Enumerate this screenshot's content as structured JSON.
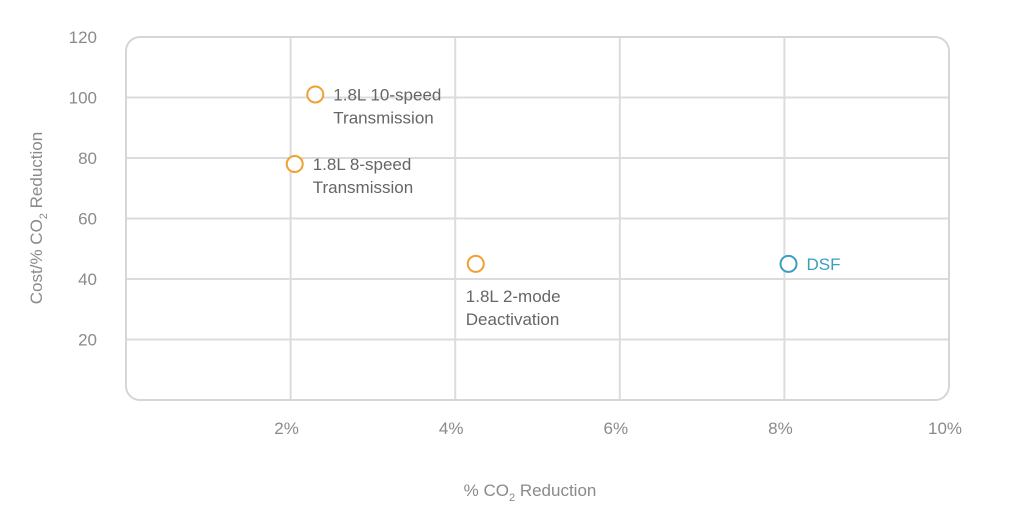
{
  "chart_data": {
    "type": "scatter",
    "xlabel": {
      "prefix": "% CO",
      "sub": "2",
      "suffix": " Reduction"
    },
    "ylabel": {
      "prefix": "Cost/% CO",
      "sub": "2",
      "suffix": " Reduction"
    },
    "xlim": [
      0,
      10
    ],
    "ylim": [
      0,
      120
    ],
    "x_ticks": [
      {
        "value": 2,
        "label": "2%"
      },
      {
        "value": 4,
        "label": "4%"
      },
      {
        "value": 6,
        "label": "6%"
      },
      {
        "value": 8,
        "label": "8%"
      },
      {
        "value": 10,
        "label": "10%"
      }
    ],
    "y_ticks": [
      {
        "value": 20,
        "label": "20"
      },
      {
        "value": 40,
        "label": "40"
      },
      {
        "value": 60,
        "label": "60"
      },
      {
        "value": 80,
        "label": "80"
      },
      {
        "value": 100,
        "label": "100"
      },
      {
        "value": 120,
        "label": "120"
      }
    ],
    "grid": true,
    "points": [
      {
        "x": 2.3,
        "y": 101,
        "label_lines": [
          "1.8L 10-speed",
          "Transmission"
        ],
        "color": "#F0A030",
        "label_side": "right"
      },
      {
        "x": 2.05,
        "y": 78,
        "label_lines": [
          "1.8L 8-speed",
          "Transmission"
        ],
        "color": "#F0A030",
        "label_side": "right"
      },
      {
        "x": 4.25,
        "y": 45,
        "label_lines": [
          "1.8L 2-mode",
          "Deactivation"
        ],
        "color": "#F0A030",
        "label_side": "below"
      },
      {
        "x": 8.05,
        "y": 45,
        "label_lines": [
          "DSF"
        ],
        "color": "#3A9EC0",
        "label_side": "right"
      }
    ],
    "colors": {
      "grid": "#dcdcdc",
      "frame": "#d6d6d6",
      "text": "#8a8a8a",
      "label_text": "#666666"
    }
  }
}
